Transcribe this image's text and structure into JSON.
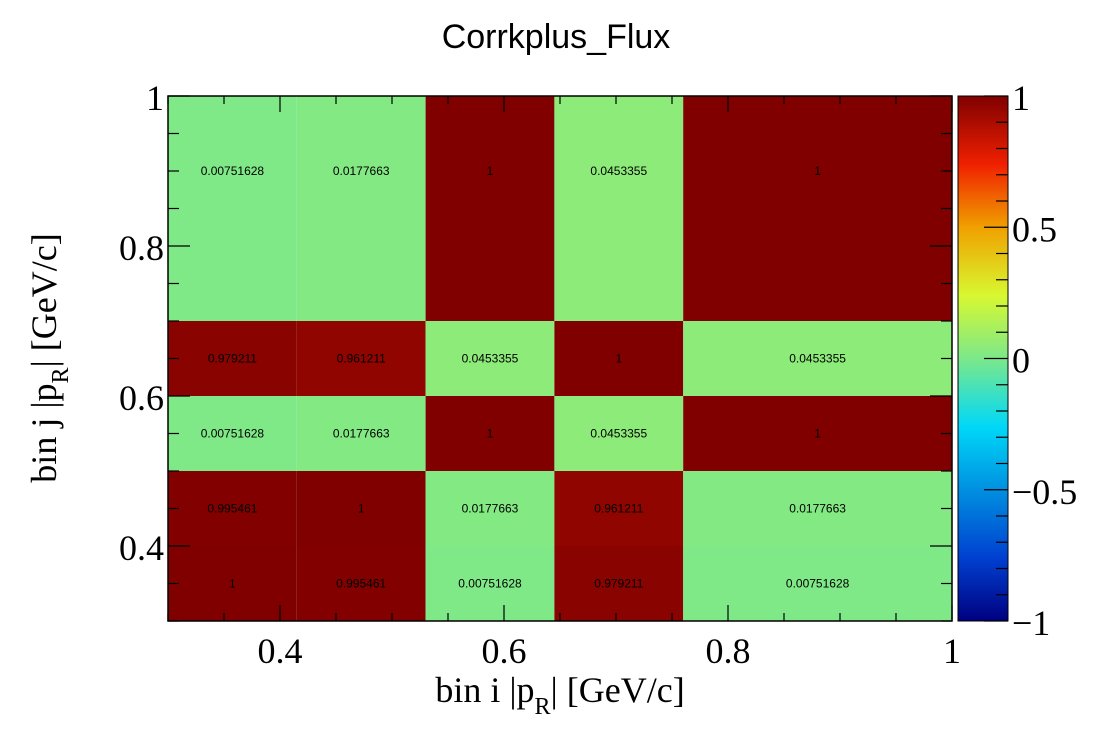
{
  "chart_data": {
    "type": "heatmap",
    "title": "Corrkplus_Flux",
    "xlabel": "bin i |p_R| [GeV/c]",
    "ylabel": "bin j |p_R| [GeV/c]",
    "xlim": [
      0.3,
      1.0
    ],
    "ylim": [
      0.3,
      1.0
    ],
    "x_edges": [
      0.3,
      0.415,
      0.53,
      0.645,
      0.76,
      1.0
    ],
    "y_edges": [
      0.3,
      0.4,
      0.5,
      0.6,
      0.7,
      0.8,
      1.0
    ],
    "x_ticks": [
      0.4,
      0.6,
      0.8,
      1.0
    ],
    "x_tick_labels": [
      "0.4",
      "0.6",
      "0.8",
      "1"
    ],
    "y_ticks": [
      0.4,
      0.6,
      0.8,
      1.0
    ],
    "y_tick_labels": [
      "0.4",
      "0.6",
      "0.8",
      "1"
    ],
    "z_range": [
      -1,
      1
    ],
    "z_ticks": [
      -1,
      -0.5,
      0,
      0.5,
      1
    ],
    "z_tick_labels": [
      "−1",
      "−0.5",
      "0",
      "0.5",
      "1"
    ],
    "cells": [
      [
        "1",
        "0.995461",
        "0.00751628",
        "0.979211",
        "0.00751628"
      ],
      [
        "0.995461",
        "1",
        "0.0177663",
        "0.961211",
        "0.0177663"
      ],
      [
        "0.00751628",
        "0.0177663",
        "1",
        "0.0453355",
        "1"
      ],
      [
        "0.979211",
        "0.961211",
        "0.0453355",
        "1",
        "0.0453355"
      ],
      [
        "0.00751628",
        "0.0177663",
        "1",
        "0.0453355",
        "1"
      ],
      [
        "0.00751628",
        "0.0177663",
        "1",
        "0.0453355",
        "1"
      ]
    ],
    "label_rows": [
      0,
      1,
      2,
      3,
      5
    ],
    "grid": false,
    "colorbar": "right"
  }
}
